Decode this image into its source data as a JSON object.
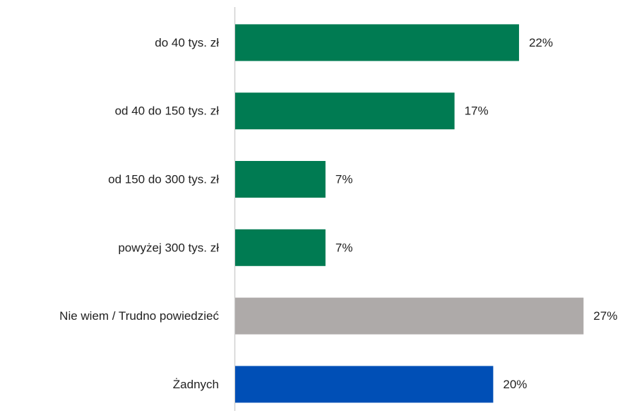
{
  "chart_data": {
    "type": "barh",
    "categories": [
      "do 40 tys. zł",
      "od 40 do 150 tys. zł",
      "od 150 do 300 tys. zł",
      "powyżej 300 tys. zł",
      "Nie wiem / Trudno powiedzieć",
      "Żadnych"
    ],
    "values": [
      22,
      17,
      7,
      7,
      27,
      20
    ],
    "value_labels": [
      "22%",
      "17%",
      "7%",
      "7%",
      "27%",
      "20%"
    ],
    "colors": [
      "#007b52",
      "#007b52",
      "#007b52",
      "#007b52",
      "#aeaaa9",
      "#004fb6"
    ]
  }
}
